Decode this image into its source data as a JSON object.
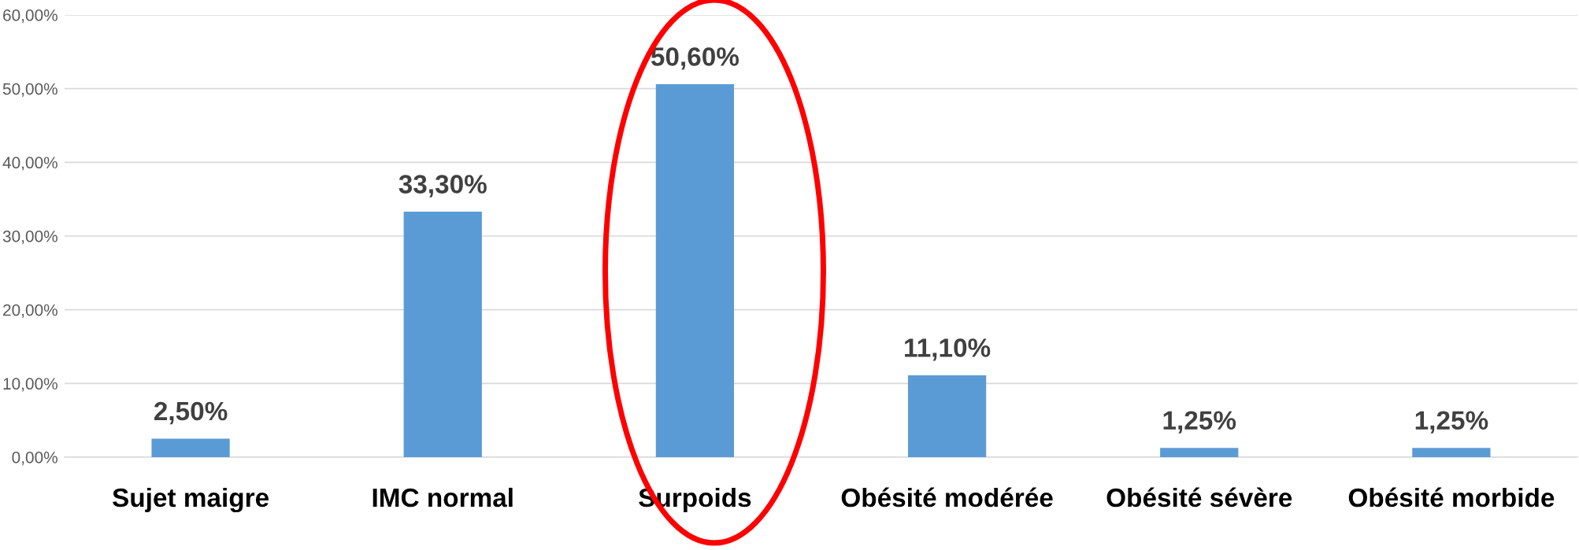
{
  "chart_data": {
    "type": "bar",
    "categories": [
      "Sujet maigre",
      "IMC normal",
      "Surpoids",
      "Obésité modérée",
      "Obésité sévère",
      "Obésité morbide"
    ],
    "values": [
      2.5,
      33.3,
      50.6,
      11.1,
      1.25,
      1.25
    ],
    "value_labels": [
      "2,50%",
      "33,30%",
      "50,60%",
      "11,10%",
      "1,25%",
      "1,25%"
    ],
    "color": "#5b9bd5",
    "ylim": [
      0,
      60
    ],
    "yticks": [
      {
        "value": 0,
        "label": "0,00%"
      },
      {
        "value": 10,
        "label": "10,00%"
      },
      {
        "value": 20,
        "label": "20,00%"
      },
      {
        "value": 30,
        "label": "30,00%"
      },
      {
        "value": 40,
        "label": "40,00%"
      },
      {
        "value": 50,
        "label": "50,00%"
      },
      {
        "value": 60,
        "label": "60,00%"
      }
    ],
    "grid": "y"
  }
}
